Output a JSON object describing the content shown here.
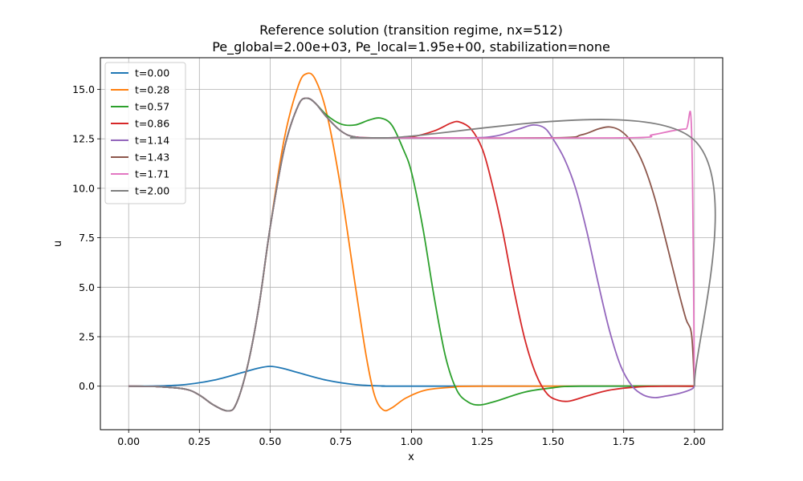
{
  "chart_data": {
    "type": "line",
    "title": "Reference solution (transition regime, nx=512)",
    "subtitle": "Pe_global=2.00e+03, Pe_local=1.95e+00, stabilization=none",
    "xlabel": "x",
    "ylabel": "u",
    "xlim": [
      -0.1,
      2.1
    ],
    "ylim": [
      -2.2,
      16.6
    ],
    "x_ticks": [
      "0.00",
      "0.25",
      "0.50",
      "0.75",
      "1.00",
      "1.25",
      "1.50",
      "1.75",
      "2.00"
    ],
    "y_ticks": [
      "0.0",
      "2.5",
      "5.0",
      "7.5",
      "10.0",
      "12.5",
      "15.0"
    ],
    "grid": true,
    "legend_position": "top-left",
    "series": [
      {
        "name": "t=0.00",
        "color": "#1f77b4",
        "points": [
          [
            0,
            0
          ],
          [
            0.1,
            0.01
          ],
          [
            0.2,
            0.08
          ],
          [
            0.3,
            0.3
          ],
          [
            0.4,
            0.68
          ],
          [
            0.45,
            0.88
          ],
          [
            0.5,
            1.0
          ],
          [
            0.55,
            0.88
          ],
          [
            0.6,
            0.68
          ],
          [
            0.7,
            0.3
          ],
          [
            0.8,
            0.08
          ],
          [
            0.9,
            0.01
          ],
          [
            1.0,
            0
          ],
          [
            2.0,
            0
          ]
        ]
      },
      {
        "name": "t=0.28",
        "color": "#ff7f0e",
        "points": [
          [
            0,
            0
          ],
          [
            0.1,
            -0.02
          ],
          [
            0.2,
            -0.15
          ],
          [
            0.25,
            -0.45
          ],
          [
            0.3,
            -0.95
          ],
          [
            0.35,
            -1.25
          ],
          [
            0.38,
            -0.9
          ],
          [
            0.42,
            1.0
          ],
          [
            0.46,
            4.0
          ],
          [
            0.5,
            8.0
          ],
          [
            0.55,
            12.5
          ],
          [
            0.6,
            15.2
          ],
          [
            0.63,
            15.8
          ],
          [
            0.66,
            15.5
          ],
          [
            0.7,
            13.8
          ],
          [
            0.75,
            10.0
          ],
          [
            0.8,
            5.2
          ],
          [
            0.84,
            1.5
          ],
          [
            0.87,
            -0.5
          ],
          [
            0.9,
            -1.2
          ],
          [
            0.93,
            -1.1
          ],
          [
            0.98,
            -0.6
          ],
          [
            1.05,
            -0.2
          ],
          [
            1.15,
            -0.05
          ],
          [
            1.25,
            0
          ],
          [
            2.0,
            0
          ]
        ]
      },
      {
        "name": "t=0.57",
        "color": "#2ca02c",
        "points": [
          [
            0,
            0
          ],
          [
            0.1,
            -0.02
          ],
          [
            0.2,
            -0.15
          ],
          [
            0.25,
            -0.45
          ],
          [
            0.3,
            -0.95
          ],
          [
            0.35,
            -1.25
          ],
          [
            0.38,
            -0.9
          ],
          [
            0.42,
            1.0
          ],
          [
            0.46,
            4.0
          ],
          [
            0.5,
            8.0
          ],
          [
            0.55,
            12.0
          ],
          [
            0.6,
            14.2
          ],
          [
            0.63,
            14.55
          ],
          [
            0.66,
            14.3
          ],
          [
            0.7,
            13.7
          ],
          [
            0.75,
            13.25
          ],
          [
            0.8,
            13.2
          ],
          [
            0.85,
            13.45
          ],
          [
            0.89,
            13.55
          ],
          [
            0.93,
            13.2
          ],
          [
            0.97,
            12.0
          ],
          [
            1.0,
            10.8
          ],
          [
            1.04,
            8.0
          ],
          [
            1.08,
            4.5
          ],
          [
            1.12,
            1.5
          ],
          [
            1.16,
            -0.2
          ],
          [
            1.2,
            -0.8
          ],
          [
            1.24,
            -0.95
          ],
          [
            1.3,
            -0.75
          ],
          [
            1.4,
            -0.3
          ],
          [
            1.5,
            -0.08
          ],
          [
            1.6,
            0
          ],
          [
            2.0,
            0
          ]
        ]
      },
      {
        "name": "t=0.86",
        "color": "#d62728",
        "points": [
          [
            0,
            0
          ],
          [
            0.1,
            -0.02
          ],
          [
            0.2,
            -0.15
          ],
          [
            0.25,
            -0.45
          ],
          [
            0.3,
            -0.95
          ],
          [
            0.35,
            -1.25
          ],
          [
            0.38,
            -0.9
          ],
          [
            0.42,
            1.0
          ],
          [
            0.46,
            4.0
          ],
          [
            0.5,
            8.0
          ],
          [
            0.55,
            12.0
          ],
          [
            0.6,
            14.2
          ],
          [
            0.63,
            14.55
          ],
          [
            0.66,
            14.3
          ],
          [
            0.7,
            13.6
          ],
          [
            0.75,
            12.9
          ],
          [
            0.8,
            12.6
          ],
          [
            0.9,
            12.55
          ],
          [
            1.0,
            12.6
          ],
          [
            1.08,
            12.9
          ],
          [
            1.14,
            13.3
          ],
          [
            1.17,
            13.35
          ],
          [
            1.21,
            13.0
          ],
          [
            1.25,
            12.0
          ],
          [
            1.28,
            10.5
          ],
          [
            1.32,
            8.0
          ],
          [
            1.36,
            5.0
          ],
          [
            1.4,
            2.4
          ],
          [
            1.44,
            0.6
          ],
          [
            1.48,
            -0.4
          ],
          [
            1.52,
            -0.72
          ],
          [
            1.56,
            -0.75
          ],
          [
            1.62,
            -0.5
          ],
          [
            1.7,
            -0.2
          ],
          [
            1.8,
            -0.04
          ],
          [
            1.9,
            0
          ],
          [
            2.0,
            0
          ]
        ]
      },
      {
        "name": "t=1.14",
        "color": "#9467bd",
        "points": [
          [
            0,
            0
          ],
          [
            0.1,
            -0.02
          ],
          [
            0.2,
            -0.15
          ],
          [
            0.25,
            -0.45
          ],
          [
            0.3,
            -0.95
          ],
          [
            0.35,
            -1.25
          ],
          [
            0.38,
            -0.9
          ],
          [
            0.42,
            1.0
          ],
          [
            0.46,
            4.0
          ],
          [
            0.5,
            8.0
          ],
          [
            0.55,
            12.0
          ],
          [
            0.6,
            14.2
          ],
          [
            0.63,
            14.55
          ],
          [
            0.66,
            14.3
          ],
          [
            0.7,
            13.6
          ],
          [
            0.75,
            12.9
          ],
          [
            0.8,
            12.6
          ],
          [
            0.9,
            12.55
          ],
          [
            1.2,
            12.55
          ],
          [
            1.3,
            12.65
          ],
          [
            1.38,
            13.0
          ],
          [
            1.43,
            13.2
          ],
          [
            1.47,
            13.05
          ],
          [
            1.5,
            12.5
          ],
          [
            1.54,
            11.5
          ],
          [
            1.58,
            10.0
          ],
          [
            1.62,
            7.8
          ],
          [
            1.66,
            5.2
          ],
          [
            1.7,
            2.8
          ],
          [
            1.74,
            1.0
          ],
          [
            1.78,
            0.0
          ],
          [
            1.82,
            -0.45
          ],
          [
            1.86,
            -0.58
          ],
          [
            1.9,
            -0.5
          ],
          [
            1.95,
            -0.35
          ],
          [
            1.99,
            -0.15
          ],
          [
            2.0,
            0
          ]
        ]
      },
      {
        "name": "t=1.43",
        "color": "#8c564b",
        "points": [
          [
            0,
            0
          ],
          [
            0.1,
            -0.02
          ],
          [
            0.2,
            -0.15
          ],
          [
            0.25,
            -0.45
          ],
          [
            0.3,
            -0.95
          ],
          [
            0.35,
            -1.25
          ],
          [
            0.38,
            -0.9
          ],
          [
            0.42,
            1.0
          ],
          [
            0.46,
            4.0
          ],
          [
            0.5,
            8.0
          ],
          [
            0.55,
            12.0
          ],
          [
            0.6,
            14.2
          ],
          [
            0.63,
            14.55
          ],
          [
            0.66,
            14.3
          ],
          [
            0.7,
            13.6
          ],
          [
            0.75,
            12.9
          ],
          [
            0.8,
            12.6
          ],
          [
            0.9,
            12.55
          ],
          [
            1.5,
            12.55
          ],
          [
            1.6,
            12.7
          ],
          [
            1.66,
            13.0
          ],
          [
            1.7,
            13.1
          ],
          [
            1.74,
            12.9
          ],
          [
            1.78,
            12.3
          ],
          [
            1.82,
            11.2
          ],
          [
            1.86,
            9.5
          ],
          [
            1.9,
            7.3
          ],
          [
            1.94,
            5.0
          ],
          [
            1.97,
            3.4
          ],
          [
            1.99,
            2.6
          ],
          [
            2.0,
            0
          ]
        ]
      },
      {
        "name": "t=1.71",
        "color": "#e377c2",
        "points": [
          [
            0,
            0
          ],
          [
            0.1,
            -0.02
          ],
          [
            0.2,
            -0.15
          ],
          [
            0.25,
            -0.45
          ],
          [
            0.3,
            -0.95
          ],
          [
            0.35,
            -1.25
          ],
          [
            0.38,
            -0.9
          ],
          [
            0.42,
            1.0
          ],
          [
            0.46,
            4.0
          ],
          [
            0.5,
            8.0
          ],
          [
            0.55,
            12.0
          ],
          [
            0.6,
            14.2
          ],
          [
            0.63,
            14.55
          ],
          [
            0.66,
            14.3
          ],
          [
            0.7,
            13.6
          ],
          [
            0.75,
            12.9
          ],
          [
            0.8,
            12.6
          ],
          [
            0.9,
            12.55
          ],
          [
            1.75,
            12.55
          ],
          [
            1.85,
            12.7
          ],
          [
            1.92,
            12.9
          ],
          [
            1.97,
            13.0
          ],
          [
            1.99,
            12.9
          ],
          [
            2.0,
            0
          ]
        ]
      },
      {
        "name": "t=2.00",
        "color": "#7f7f7f",
        "points": [
          [
            0,
            0
          ],
          [
            0.1,
            -0.02
          ],
          [
            0.2,
            -0.15
          ],
          [
            0.25,
            -0.45
          ],
          [
            0.3,
            -0.95
          ],
          [
            0.35,
            -1.25
          ],
          [
            0.38,
            -0.9
          ],
          [
            0.42,
            1.0
          ],
          [
            0.46,
            4.0
          ],
          [
            0.5,
            8.0
          ],
          [
            0.55,
            12.0
          ],
          [
            0.6,
            14.2
          ],
          [
            0.63,
            14.55
          ],
          [
            0.66,
            14.3
          ],
          [
            0.7,
            13.6
          ],
          [
            0.75,
            12.9
          ],
          [
            0.8,
            12.6
          ],
          [
            0.9,
            12.55
          ],
          [
            1.99,
            12.55
          ],
          [
            2.0,
            0
          ]
        ]
      }
    ]
  }
}
